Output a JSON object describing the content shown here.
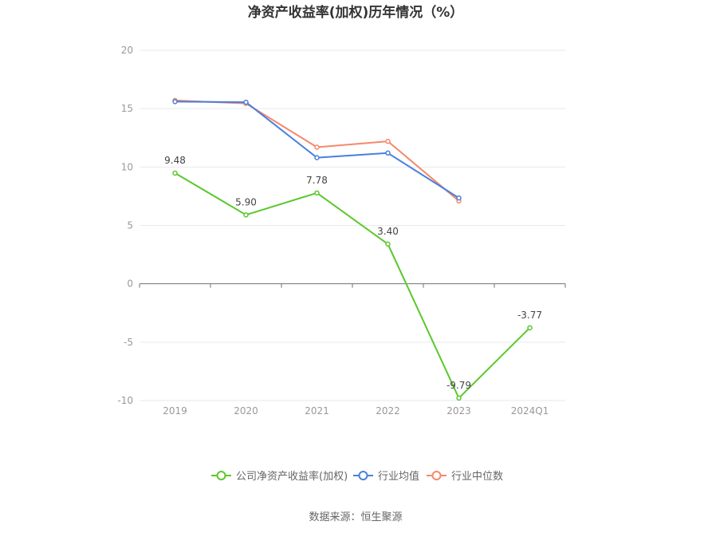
{
  "chart_data": {
    "type": "line",
    "title": "净资产收益率(加权)历年情况（%）",
    "categories": [
      "2019",
      "2020",
      "2021",
      "2022",
      "2023",
      "2024Q1"
    ],
    "ylim": [
      -10,
      20
    ],
    "yticks": [
      20,
      15,
      10,
      5,
      0,
      -5,
      -10
    ],
    "grid": true,
    "legend_position": "bottom",
    "series": [
      {
        "name": "公司净资产收益率(加权)",
        "color": "#5ac82c",
        "values": [
          9.48,
          5.9,
          7.78,
          3.4,
          -9.79,
          -3.77
        ],
        "labels": [
          "9.48",
          "5.90",
          "7.78",
          "3.40",
          "-9.79",
          "-3.77"
        ]
      },
      {
        "name": "行业均值",
        "color": "#4a7fde",
        "values": [
          15.6,
          15.55,
          10.8,
          11.2,
          7.35,
          null
        ]
      },
      {
        "name": "行业中位数",
        "color": "#f4896c",
        "values": [
          15.7,
          15.45,
          11.7,
          12.2,
          7.1,
          null
        ]
      }
    ]
  },
  "source_text": "数据来源：恒生聚源"
}
